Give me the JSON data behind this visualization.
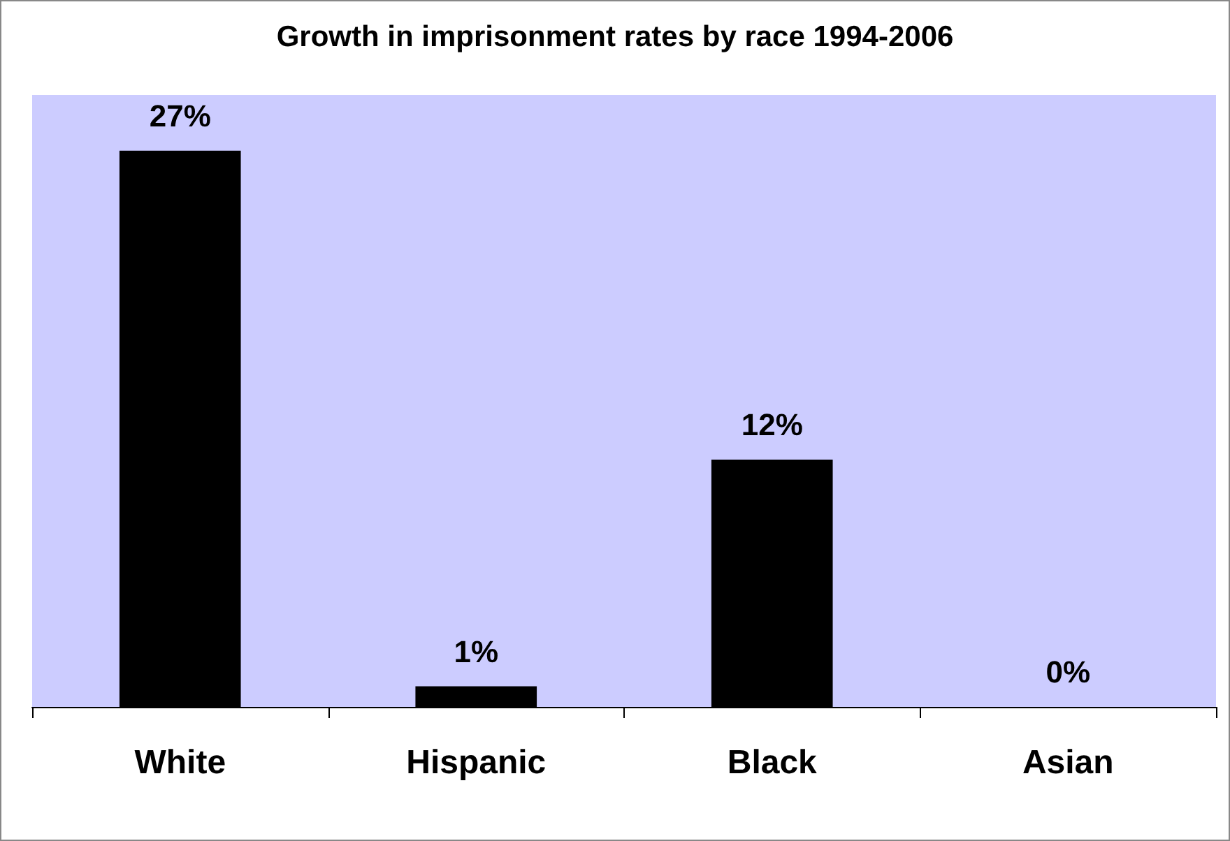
{
  "chart_data": {
    "type": "bar",
    "title": "Growth in imprisonment rates by race 1994-2006",
    "categories": [
      "White",
      "Hispanic",
      "Black",
      "Asian"
    ],
    "values": [
      27,
      1,
      12,
      0
    ],
    "value_labels": [
      "27%",
      "1%",
      "12%",
      "0%"
    ],
    "color": "#000000"
  }
}
